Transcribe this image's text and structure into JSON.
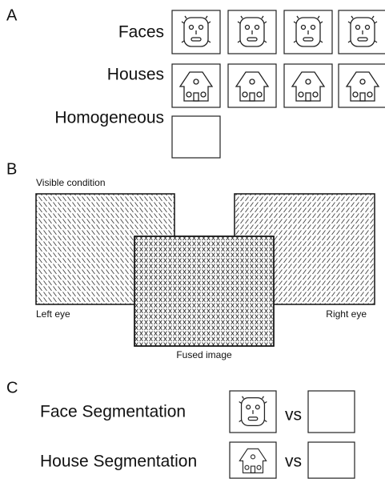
{
  "panel_a": {
    "label": "A",
    "rows": [
      "Faces",
      "Houses",
      "Homogeneous"
    ]
  },
  "panel_b": {
    "label": "B",
    "title": "Visible condition",
    "left": "Left eye",
    "right": "Right eye",
    "fused": "Fused image"
  },
  "panel_c": {
    "label": "C",
    "rows": [
      {
        "label": "Face Segmentation",
        "vs": "vs"
      },
      {
        "label": "House Segmentation",
        "vs": "vs"
      }
    ]
  }
}
